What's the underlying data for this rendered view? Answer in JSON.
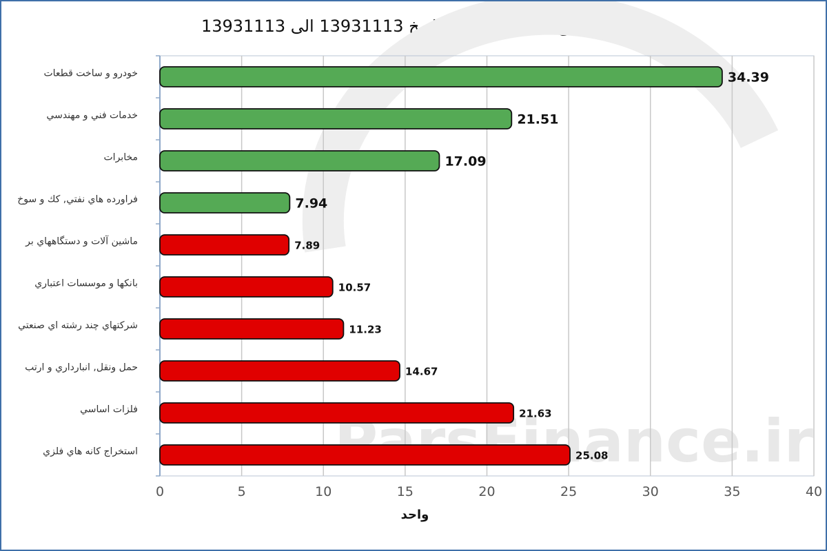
{
  "chart_data": {
    "type": "bar",
    "orientation": "horizontal",
    "title": "تاثیر صنایع ها بر شاخص از تاریخ 13931113 الی 13931113",
    "xlabel": "واحد",
    "xlim": [
      0,
      40
    ],
    "xticks": [
      0,
      5,
      10,
      15,
      20,
      25,
      30,
      35,
      40
    ],
    "grid": true,
    "categories": [
      "خودرو و ساخت قطعات",
      "خدمات فني و مهندسي",
      "مخابرات",
      "فراورده هاي نفتي, كك و سوخ",
      "ماشين آلات و دستگاههاي بر",
      "بانكها و موسسات اعتباري",
      "شركتهاي چند رشته اي صنعتي",
      "حمل ونقل, انبارداري و ارتب",
      "فلزات اساسي",
      "استخراج كانه هاي فلزي"
    ],
    "values": [
      34.39,
      21.51,
      17.09,
      7.94,
      7.89,
      10.57,
      11.23,
      14.67,
      21.63,
      25.08
    ],
    "value_labels": [
      "34.39",
      "21.51",
      "17.09",
      "7.94",
      "7.89",
      "10.57",
      "11.23",
      "14.67",
      "21.63",
      "25.08"
    ],
    "effect": [
      "positive",
      "positive",
      "positive",
      "positive",
      "negative",
      "negative",
      "negative",
      "negative",
      "negative",
      "negative"
    ],
    "colors": {
      "positive": "#55aa55",
      "negative": "#e00000"
    },
    "watermark": "ParsFinance.ir"
  }
}
